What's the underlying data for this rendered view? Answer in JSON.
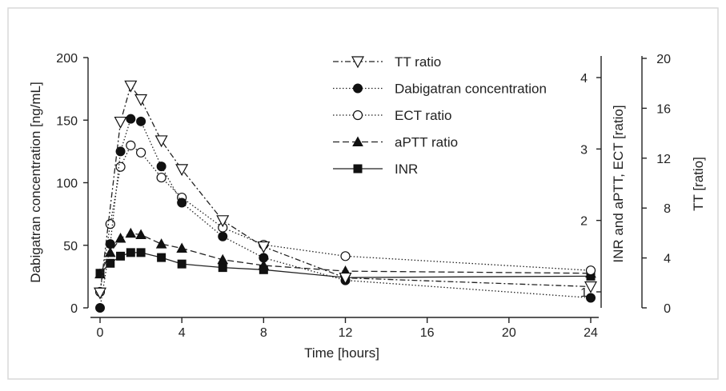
{
  "chart_data": {
    "type": "line",
    "xlabel": "Time [hours]",
    "ylabel_left": "Dabigatran concentration [ng/mL]",
    "ylabel_right1": "INR and aPTT, ECT [ratio]",
    "ylabel_right2": "TT [ratio]",
    "xlim": [
      0,
      24
    ],
    "ylim_left": [
      0,
      200
    ],
    "ylim_right1": [
      1,
      4
    ],
    "ylim_right2": [
      0,
      20
    ],
    "x_ticks": [
      "0",
      "4",
      "8",
      "12",
      "16",
      "20",
      "24"
    ],
    "y_ticks_left": [
      "0",
      "50",
      "100",
      "150",
      "200"
    ],
    "y_ticks_right1": [
      "1",
      "2",
      "3",
      "4"
    ],
    "y_ticks_right2": [
      "0",
      "4",
      "8",
      "12",
      "16",
      "20"
    ],
    "legend_position": "top-center",
    "series": [
      {
        "name": "TT ratio",
        "marker": "triangle-down-open",
        "line": "dash-dot",
        "points": [
          [
            0,
            1.2
          ],
          [
            1,
            14.9
          ],
          [
            1.5,
            17.8
          ],
          [
            2,
            16.7
          ],
          [
            3,
            13.4
          ],
          [
            4,
            11.1
          ],
          [
            6,
            7.0
          ],
          [
            8,
            4.9
          ],
          [
            12,
            2.4
          ],
          [
            24,
            1.7
          ]
        ]
      },
      {
        "name": "Dabigatran concentration",
        "marker": "circle-filled",
        "line": "dotted",
        "points": [
          [
            0,
            0
          ],
          [
            0.5,
            51
          ],
          [
            1,
            125
          ],
          [
            1.5,
            151
          ],
          [
            2,
            149
          ],
          [
            3,
            113
          ],
          [
            4,
            84
          ],
          [
            6,
            57
          ],
          [
            8,
            40
          ],
          [
            12,
            22
          ],
          [
            24,
            8
          ]
        ]
      },
      {
        "name": "ECT ratio",
        "marker": "circle-open",
        "line": "dotted",
        "points": [
          [
            0,
            1.0
          ],
          [
            0.5,
            1.95
          ],
          [
            1,
            2.75
          ],
          [
            1.5,
            3.05
          ],
          [
            2,
            2.95
          ],
          [
            3,
            2.6
          ],
          [
            4,
            2.32
          ],
          [
            6,
            1.9
          ],
          [
            8,
            1.66
          ],
          [
            12,
            1.5
          ],
          [
            24,
            1.3
          ]
        ]
      },
      {
        "name": "aPTT ratio",
        "marker": "triangle-up-filled",
        "line": "dashed",
        "points": [
          [
            0,
            1.25
          ],
          [
            0.5,
            1.55
          ],
          [
            1,
            1.75
          ],
          [
            1.5,
            1.82
          ],
          [
            2,
            1.8
          ],
          [
            3,
            1.67
          ],
          [
            4,
            1.61
          ],
          [
            6,
            1.45
          ],
          [
            8,
            1.37
          ],
          [
            12,
            1.29
          ],
          [
            24,
            1.26
          ]
        ]
      },
      {
        "name": "INR",
        "marker": "square-filled",
        "line": "solid",
        "points": [
          [
            0,
            1.26
          ],
          [
            0.5,
            1.4
          ],
          [
            1,
            1.5
          ],
          [
            1.5,
            1.55
          ],
          [
            2,
            1.55
          ],
          [
            3,
            1.48
          ],
          [
            4,
            1.39
          ],
          [
            6,
            1.34
          ],
          [
            8,
            1.31
          ],
          [
            12,
            1.2
          ],
          [
            24,
            1.22
          ]
        ]
      }
    ]
  }
}
